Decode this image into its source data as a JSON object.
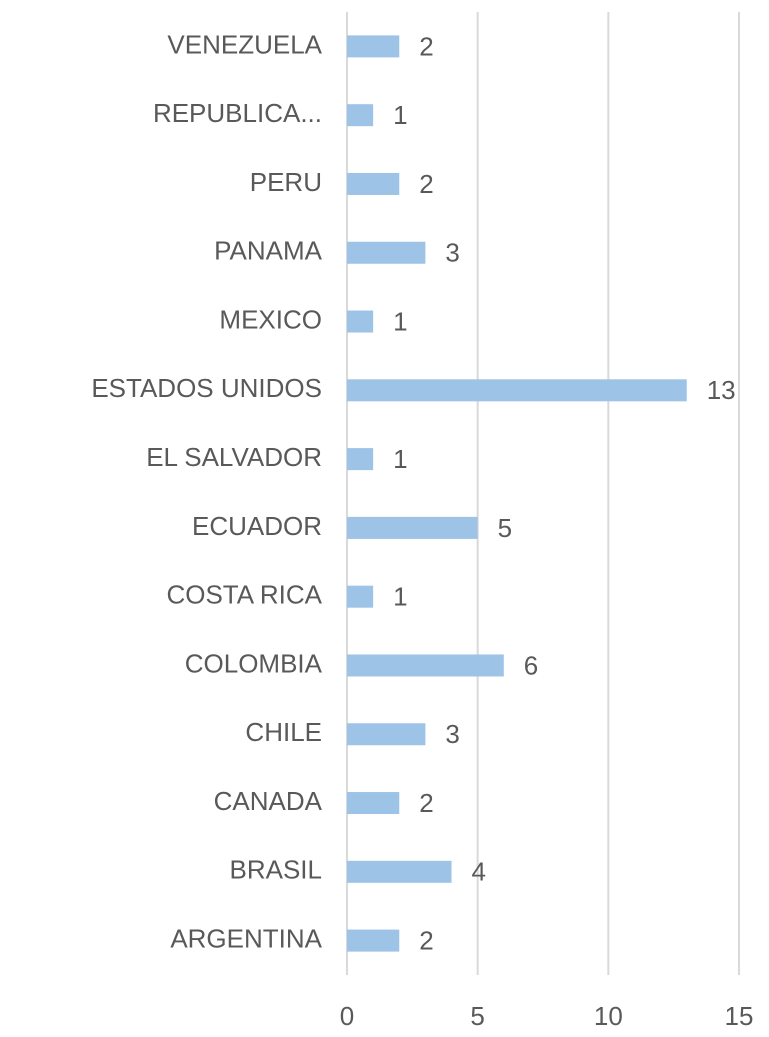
{
  "chart_data": {
    "type": "bar",
    "orientation": "horizontal",
    "categories": [
      "VENEZUELA",
      "REPUBLICA...",
      "PERU",
      "PANAMA",
      "MEXICO",
      "ESTADOS UNIDOS",
      "EL SALVADOR",
      "ECUADOR",
      "COSTA RICA",
      "COLOMBIA",
      "CHILE",
      "CANADA",
      "BRASIL",
      "ARGENTINA"
    ],
    "values": [
      2,
      1,
      2,
      3,
      1,
      13,
      1,
      5,
      1,
      6,
      3,
      2,
      4,
      2
    ],
    "color": "#9dc3e6",
    "xlim": [
      0,
      15
    ],
    "xticks": [
      0,
      5,
      10,
      15
    ],
    "grid": true
  }
}
